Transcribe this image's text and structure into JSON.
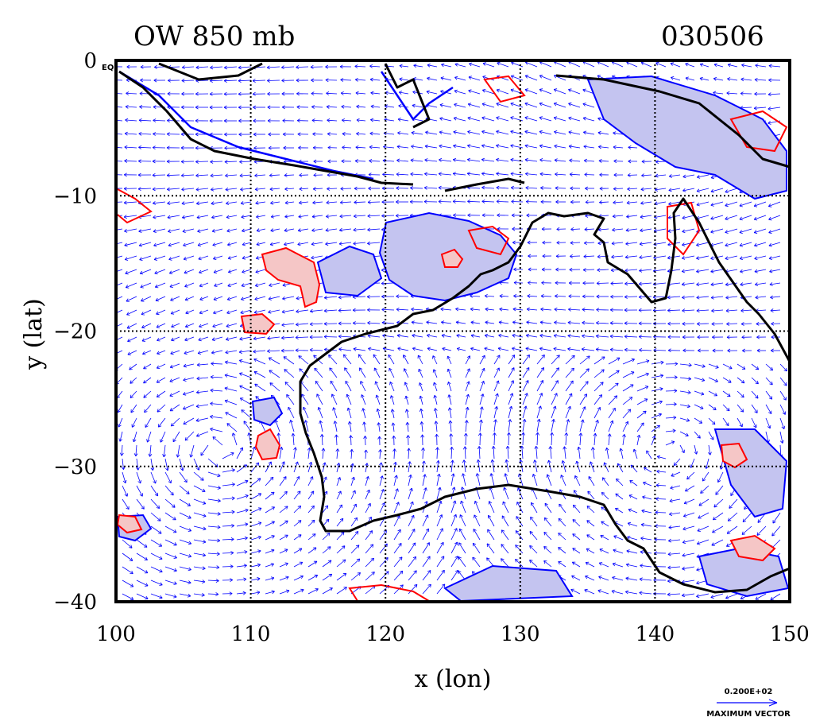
{
  "header": {
    "title": "OW 850 mb",
    "date": "030506"
  },
  "map": {
    "xlabel": "x (lon)",
    "ylabel": "y (lat)",
    "lon_range": [
      100,
      150
    ],
    "lat_range": [
      -40,
      0
    ],
    "x_ticks": [
      "100",
      "110",
      "120",
      "130",
      "140",
      "150"
    ],
    "y_ticks": [
      "0",
      "−10",
      "−20",
      "−30",
      "−40"
    ],
    "corner_marker": "EQ",
    "gridlines": "dotted every 10 degrees",
    "colors": {
      "positive_ow": "#ff0000",
      "positive_fill": "#f5c6c6",
      "negative_ow": "#0000ff",
      "negative_fill": "#c4c4f0",
      "vectors": "#0000ff",
      "coastline": "#000000"
    }
  },
  "legend": {
    "max_vector_value": "0.200E+02",
    "max_vector_label": "MAXIMUM VECTOR"
  }
}
